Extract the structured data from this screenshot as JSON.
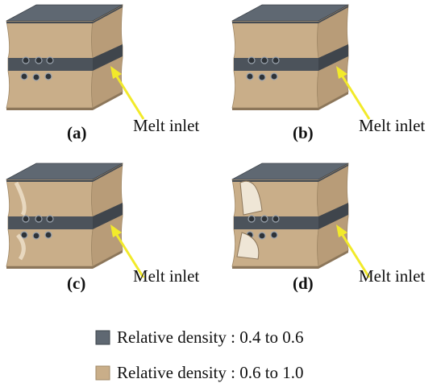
{
  "panels": [
    {
      "label": "(a)",
      "annotation": "Melt inlet"
    },
    {
      "label": "(b)",
      "annotation": "Melt inlet"
    },
    {
      "label": "(c)",
      "annotation": "Melt inlet"
    },
    {
      "label": "(d)",
      "annotation": "Melt inlet"
    }
  ],
  "legend": [
    {
      "label": "Relative density : 0.4 to 0.6"
    },
    {
      "label": "Relative density : 0.6 to 1.0"
    }
  ]
}
